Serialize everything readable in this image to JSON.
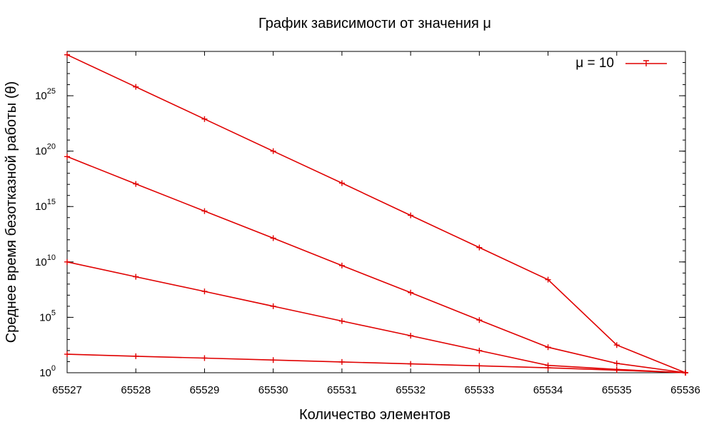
{
  "chart_data": {
    "type": "line",
    "title": "График зависимости от значения μ",
    "xlabel": "Количество элементов",
    "ylabel": "Среднее время безотказной работы (θ)",
    "x": [
      65527,
      65528,
      65529,
      65530,
      65531,
      65532,
      65533,
      65534,
      65535,
      65536
    ],
    "xlim": [
      65527,
      65536
    ],
    "ylim": [
      1,
      1e+29
    ],
    "y_scale": "log",
    "x_tick_labels": [
      "65527",
      "65528",
      "65529",
      "65530",
      "65531",
      "65532",
      "65533",
      "65534",
      "65535",
      "65536"
    ],
    "y_ticks": [
      {
        "value": 1,
        "base": "10",
        "exp": "0"
      },
      {
        "value": 100000,
        "base": "10",
        "exp": "5"
      },
      {
        "value": 10000000000.0,
        "base": "10",
        "exp": "10"
      },
      {
        "value": 1000000000000000.0,
        "base": "10",
        "exp": "15"
      },
      {
        "value": 1e+20,
        "base": "10",
        "exp": "20"
      },
      {
        "value": 1e+25,
        "base": "10",
        "exp": "25"
      }
    ],
    "series": [
      {
        "values": [
          5e+28,
          6.3e+25,
          7.9e+22,
          1e+20,
          1.3e+17,
          160000000000000.0,
          200000000000.0,
          250000000.0,
          316,
          1
        ]
      },
      {
        "values": [
          3.2e+19,
          1.1e+17,
          390000000000000.0,
          1400000000000.0,
          4700000000.0,
          17000000.0,
          57000,
          200,
          7,
          1
        ]
      },
      {
        "values": [
          10000000000.0,
          460000000.0,
          22000000.0,
          1000000.0,
          46000,
          2200,
          100,
          4.6,
          2,
          1
        ]
      },
      {
        "values": [
          47,
          31,
          21,
          14,
          9.4,
          6.3,
          4.2,
          2.8,
          1.7,
          1
        ]
      }
    ],
    "legend": {
      "label": "μ = 10",
      "position": "top-right"
    },
    "colors": {
      "series": "#e00000",
      "axes": "#000000"
    },
    "grid": false
  }
}
